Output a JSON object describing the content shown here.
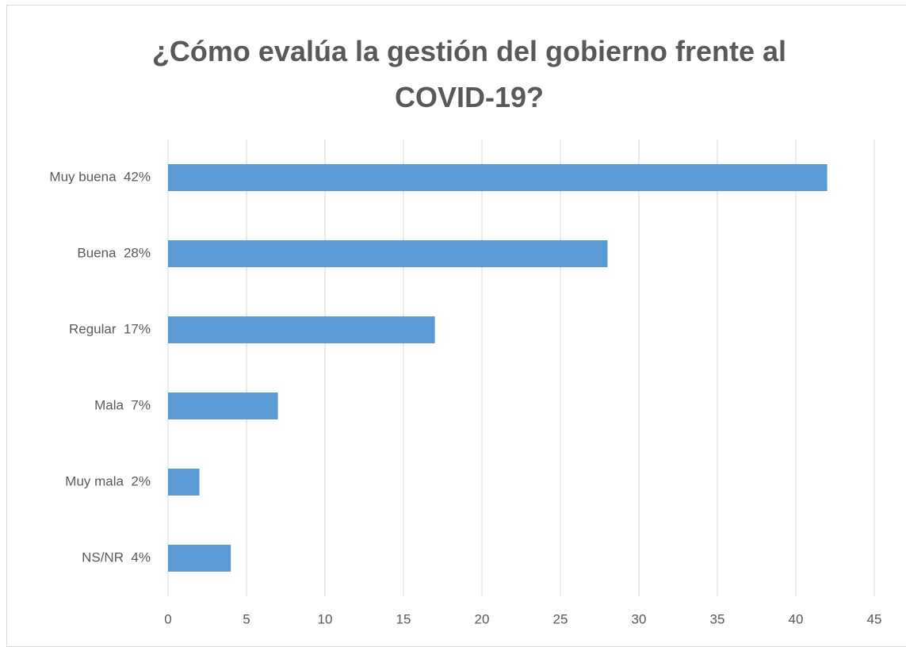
{
  "chart_data": {
    "type": "bar",
    "orientation": "horizontal",
    "title": "¿Cómo evalúa la gestión del gobierno frente al COVID-19?",
    "categories": [
      "Muy buena  42%",
      "Buena  28%",
      "Regular  17%",
      "Mala  7%",
      "Muy mala  2%",
      "NS/NR  4%"
    ],
    "values": [
      42,
      28,
      17,
      7,
      2,
      4
    ],
    "color": "#5b9bd5",
    "xlim": [
      0,
      45
    ],
    "xticks": [
      0,
      5,
      10,
      15,
      20,
      25,
      30,
      35,
      40,
      45
    ],
    "grid": true
  }
}
